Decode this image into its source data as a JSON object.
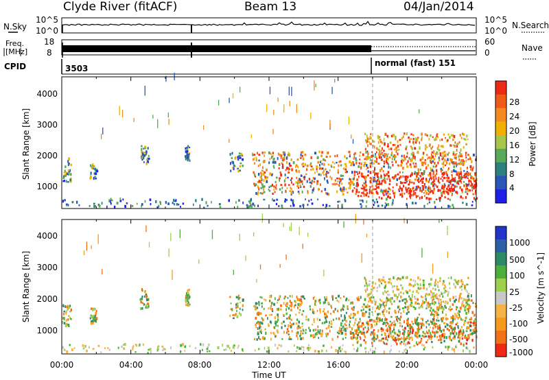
{
  "header": {
    "station": "Clyde River (fitACF)",
    "beam": "Beam 13",
    "date": "04/Jan/2014"
  },
  "chart_data": {
    "type": "heatmap",
    "x_axis": {
      "label": "Time UT",
      "ticks": [
        "00:00",
        "04:00",
        "08:00",
        "12:00",
        "16:00",
        "20:00",
        "00:00"
      ],
      "range_hours": [
        0,
        24
      ]
    },
    "nsky_panel": {
      "left_label": "N.Sky",
      "right_label": "N.Search",
      "left_ticks": [
        "10^5",
        "10^0"
      ],
      "right_ticks": [
        "10^5",
        "10^0"
      ]
    },
    "freq_panel": {
      "left_label_line1": "Freq.",
      "left_label_line2": "[MHz]",
      "right_label": "Nave",
      "left_ticks": [
        "18",
        "8"
      ],
      "right_ticks": [
        "60",
        "0"
      ],
      "frequency_mhz": 10.5,
      "nave_until_18h": 40,
      "nave_after_18h": 30
    },
    "cpid": {
      "label": "CPID",
      "segments": [
        {
          "text": "3503",
          "start_hour": 0
        },
        {
          "text": "normal (fast) 151",
          "start_hour": 18
        }
      ]
    },
    "power_panel": {
      "ylabel": "Slant Range [km]",
      "y_ticks": [
        "1000",
        "2000",
        "3000",
        "4000"
      ],
      "ylim": [
        180,
        4500
      ],
      "colorbar_label": "Power [dB]",
      "colorbar_ticks": [
        "4",
        "8",
        "12",
        "16",
        "20",
        "24",
        "28"
      ],
      "colorbar_range": [
        0,
        30
      ],
      "colors": [
        "#1f1fe6",
        "#2b55b8",
        "#2e7f80",
        "#58a95a",
        "#a6c64a",
        "#f0b000",
        "#f58a1e",
        "#f25a18",
        "#ee2a14"
      ]
    },
    "velocity_panel": {
      "ylabel": "Slant Range [km]",
      "y_ticks": [
        "1000",
        "2000",
        "3000",
        "4000"
      ],
      "ylim": [
        180,
        4500
      ],
      "colorbar_label": "Velocity [m s^-1]",
      "colorbar_ticks": [
        "1000",
        "500",
        "100",
        "25",
        "-25",
        "-100",
        "-500",
        "-1000"
      ],
      "colorbar_range": [
        -1250,
        1250
      ],
      "colors": [
        "#2233cc",
        "#2b5fa8",
        "#2e8a66",
        "#4caf3a",
        "#9ed050",
        "#c8c8c8",
        "#f4b342",
        "#f59a1a",
        "#f27018",
        "#ee2a14"
      ]
    },
    "features": [
      {
        "name": "ground scatter band",
        "start_hour": 0,
        "end_hour": 24,
        "range_km": [
          180,
          450
        ]
      },
      {
        "name": "echo near 00:30",
        "start_hour": 0,
        "end_hour": 0.5,
        "range_km": [
          1000,
          1800
        ]
      },
      {
        "name": "echo near 02:00",
        "start_hour": 1.6,
        "end_hour": 2.0,
        "range_km": [
          1100,
          1600
        ]
      },
      {
        "name": "echo near 04:45",
        "start_hour": 4.5,
        "end_hour": 5.0,
        "range_km": [
          1600,
          2200
        ]
      },
      {
        "name": "echo near 07:15",
        "start_hour": 7.1,
        "end_hour": 7.4,
        "range_km": [
          1700,
          2200
        ]
      },
      {
        "name": "echo near 10:00",
        "start_hour": 9.7,
        "end_hour": 10.5,
        "range_km": [
          1300,
          2000
        ]
      },
      {
        "name": "broad echo region",
        "start_hour": 11,
        "end_hour": 24,
        "range_km": [
          600,
          2000
        ]
      },
      {
        "name": "strong echo region",
        "start_hour": 17,
        "end_hour": 24,
        "range_km": [
          450,
          1300
        ]
      },
      {
        "name": "upper echo region",
        "start_hour": 17.5,
        "end_hour": 23.5,
        "range_km": [
          1600,
          2600
        ]
      }
    ]
  }
}
